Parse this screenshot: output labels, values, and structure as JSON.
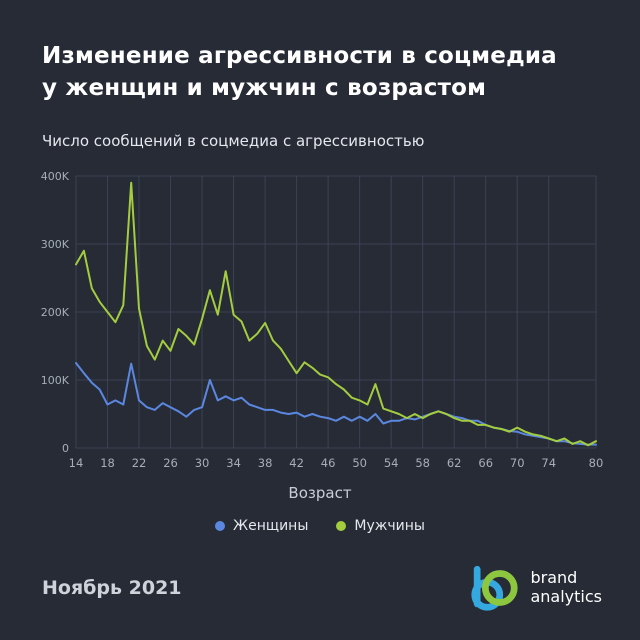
{
  "header": {
    "title_line1": "Изменение агрессивности в соцмедиа",
    "title_line2": "у женщин и мужчин с возрастом",
    "subtitle": "Число сообщений в соцмедиа с агрессивностью"
  },
  "chart_data": {
    "type": "line",
    "title": "Число сообщений в соцмедиа с агрессивностью",
    "xlabel": "Возраст",
    "ylabel": "Число сообщений",
    "x_range": [
      14,
      80
    ],
    "ylim": [
      0,
      400000
    ],
    "grid": true,
    "legend_position": "bottom",
    "x_ticks": [
      14,
      18,
      22,
      26,
      30,
      34,
      38,
      42,
      46,
      50,
      54,
      58,
      62,
      66,
      70,
      74,
      80
    ],
    "y_ticks": [
      {
        "value": 0,
        "label": "0"
      },
      {
        "value": 100000,
        "label": "100K"
      },
      {
        "value": 200000,
        "label": "200K"
      },
      {
        "value": 300000,
        "label": "300K"
      },
      {
        "value": 400000,
        "label": "400K"
      }
    ],
    "colors": {
      "grid": "#3b4252",
      "tick": "#a8aeb9",
      "background": "#262b36"
    },
    "series": [
      {
        "name": "Женщины",
        "key": "women",
        "color": "#5b87e0",
        "values": [
          125000,
          110000,
          96000,
          86000,
          64000,
          70000,
          64000,
          124000,
          70000,
          60000,
          56000,
          66000,
          60000,
          54000,
          46000,
          56000,
          60000,
          100000,
          70000,
          76000,
          70000,
          74000,
          64000,
          60000,
          56000,
          56000,
          52000,
          50000,
          52000,
          46000,
          50000,
          46000,
          44000,
          40000,
          46000,
          40000,
          46000,
          40000,
          50000,
          36000,
          40000,
          40000,
          44000,
          42000,
          46000,
          50000,
          54000,
          50000,
          46000,
          44000,
          40000,
          40000,
          34000,
          30000,
          28000,
          25000,
          24000,
          20000,
          18000,
          16000,
          14000,
          10000,
          10000,
          7000,
          6000,
          5000,
          5000
        ]
      },
      {
        "name": "Мужчины",
        "key": "men",
        "color": "#a3cc3f",
        "values": [
          270000,
          290000,
          235000,
          215000,
          200000,
          185000,
          210000,
          390000,
          205000,
          150000,
          130000,
          158000,
          143000,
          175000,
          165000,
          152000,
          190000,
          232000,
          196000,
          260000,
          196000,
          186000,
          158000,
          168000,
          184000,
          158000,
          146000,
          128000,
          110000,
          126000,
          118000,
          108000,
          104000,
          94000,
          86000,
          74000,
          70000,
          64000,
          94000,
          58000,
          54000,
          50000,
          44000,
          50000,
          44000,
          50000,
          54000,
          50000,
          44000,
          40000,
          40000,
          34000,
          34000,
          30000,
          28000,
          24000,
          30000,
          24000,
          20000,
          18000,
          14000,
          10000,
          14000,
          6000,
          10000,
          4000,
          10000
        ]
      }
    ]
  },
  "footer": {
    "date": "Ноябрь 2021",
    "logo_line1": "brand",
    "logo_line2": "analytics",
    "logo_green": "#8dc63f",
    "logo_blue": "#35a8e0"
  }
}
